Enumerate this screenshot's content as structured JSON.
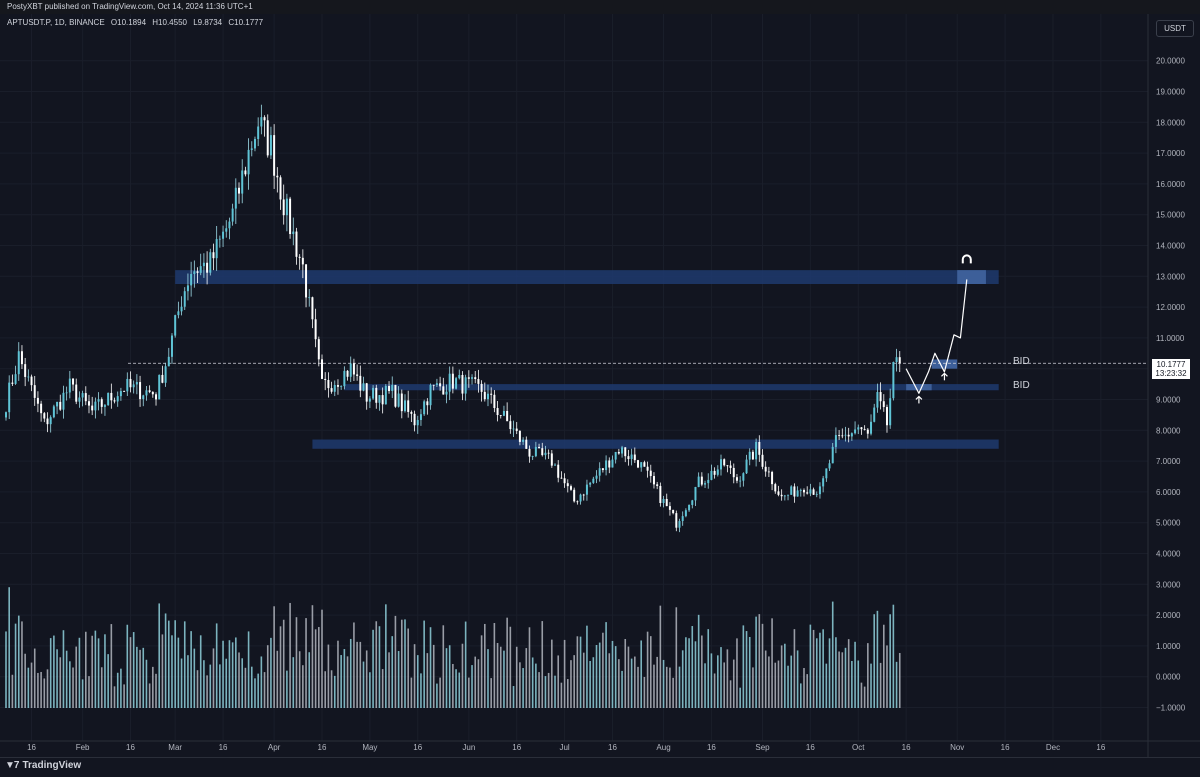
{
  "header": {
    "publisher": "PostyXBT published on TradingView.com, Oct 14, 2024 11:36 UTC+1"
  },
  "symbol": {
    "name": "APTUSDT.P, 1D, BINANCE",
    "open": "O10.1894",
    "high": "H10.4550",
    "low": "L9.8734",
    "close": "C10.1777"
  },
  "currency": "USDT",
  "last_price": {
    "price": "10.1777",
    "countdown": "13:23:32"
  },
  "bid_labels": [
    "BID",
    "BID"
  ],
  "footer": {
    "brand": "TradingView"
  },
  "colors": {
    "background": "#121520",
    "candle": "#ffffff",
    "volume": "#b2b5be",
    "zone": "#1e3a6e",
    "zone_light": "#3d5f99"
  },
  "chart_data": {
    "type": "candlestick",
    "ylim": [
      -1.7,
      20.7
    ],
    "y_ticks": [
      "20.0000",
      "19.0000",
      "18.0000",
      "17.0000",
      "16.0000",
      "15.0000",
      "14.0000",
      "13.0000",
      "12.0000",
      "11.0000",
      "10.0000",
      "9.0000",
      "8.0000",
      "7.0000",
      "6.0000",
      "5.0000",
      "4.0000",
      "3.0000",
      "2.0000",
      "1.0000",
      "0.0000",
      "−1.0000"
    ],
    "x_ticks": [
      "16",
      "Feb",
      "16",
      "Mar",
      "16",
      "Apr",
      "16",
      "May",
      "16",
      "Jun",
      "16",
      "Jul",
      "16",
      "Aug",
      "16",
      "Sep",
      "16",
      "Oct",
      "16",
      "Nov",
      "16",
      "Dec",
      "16"
    ],
    "price_path": [
      {
        "date": "2024-01-08",
        "price": 8.9
      },
      {
        "date": "2024-01-12",
        "price": 10.4
      },
      {
        "date": "2024-01-20",
        "price": 8.2
      },
      {
        "date": "2024-01-28",
        "price": 9.4
      },
      {
        "date": "2024-02-04",
        "price": 8.6
      },
      {
        "date": "2024-02-14",
        "price": 9.4
      },
      {
        "date": "2024-02-24",
        "price": 9.2
      },
      {
        "date": "2024-02-28",
        "price": 10.5
      },
      {
        "date": "2024-03-03",
        "price": 12.3
      },
      {
        "date": "2024-03-06",
        "price": 13.2
      },
      {
        "date": "2024-03-12",
        "price": 13.4
      },
      {
        "date": "2024-03-19",
        "price": 15.0
      },
      {
        "date": "2024-03-24",
        "price": 17.0
      },
      {
        "date": "2024-03-27",
        "price": 18.0
      },
      {
        "date": "2024-03-31",
        "price": 17.2
      },
      {
        "date": "2024-04-05",
        "price": 15.0
      },
      {
        "date": "2024-04-10",
        "price": 13.3
      },
      {
        "date": "2024-04-13",
        "price": 11.3
      },
      {
        "date": "2024-04-16",
        "price": 9.4
      },
      {
        "date": "2024-04-21",
        "price": 9.7
      },
      {
        "date": "2024-04-25",
        "price": 10.0
      },
      {
        "date": "2024-04-30",
        "price": 9.1
      },
      {
        "date": "2024-05-08",
        "price": 9.2
      },
      {
        "date": "2024-05-15",
        "price": 8.3
      },
      {
        "date": "2024-05-20",
        "price": 9.3
      },
      {
        "date": "2024-05-27",
        "price": 9.6
      },
      {
        "date": "2024-06-05",
        "price": 9.3
      },
      {
        "date": "2024-06-12",
        "price": 8.4
      },
      {
        "date": "2024-06-20",
        "price": 7.3
      },
      {
        "date": "2024-06-27",
        "price": 7.0
      },
      {
        "date": "2024-07-04",
        "price": 5.7
      },
      {
        "date": "2024-07-10",
        "price": 6.4
      },
      {
        "date": "2024-07-18",
        "price": 7.4
      },
      {
        "date": "2024-07-24",
        "price": 7.0
      },
      {
        "date": "2024-07-30",
        "price": 6.0
      },
      {
        "date": "2024-08-05",
        "price": 5.0
      },
      {
        "date": "2024-08-12",
        "price": 6.3
      },
      {
        "date": "2024-08-20",
        "price": 6.9
      },
      {
        "date": "2024-08-24",
        "price": 6.4
      },
      {
        "date": "2024-08-30",
        "price": 7.4
      },
      {
        "date": "2024-09-07",
        "price": 5.8
      },
      {
        "date": "2024-09-14",
        "price": 6.2
      },
      {
        "date": "2024-09-19",
        "price": 6.0
      },
      {
        "date": "2024-09-24",
        "price": 7.6
      },
      {
        "date": "2024-10-01",
        "price": 8.1
      },
      {
        "date": "2024-10-04",
        "price": 7.8
      },
      {
        "date": "2024-10-07",
        "price": 9.0
      },
      {
        "date": "2024-10-10",
        "price": 8.2
      },
      {
        "date": "2024-10-12",
        "price": 9.9
      },
      {
        "date": "2024-10-14",
        "price": 10.18
      }
    ],
    "zones": [
      {
        "from": "2024-03-01",
        "to": "2024-11-14",
        "low": 12.75,
        "high": 13.2
      },
      {
        "from": "2024-04-23",
        "to": "2024-11-14",
        "low": 9.3,
        "high": 9.5
      },
      {
        "from": "2024-04-13",
        "to": "2024-11-14",
        "low": 7.4,
        "high": 7.7
      }
    ],
    "last_price_line": 10.1777,
    "projection": [
      {
        "date": "2024-10-16",
        "price": 10.0
      },
      {
        "date": "2024-10-20",
        "price": 9.2
      },
      {
        "date": "2024-10-23",
        "price": 9.9
      },
      {
        "date": "2024-10-25",
        "price": 10.5
      },
      {
        "date": "2024-10-28",
        "price": 9.9
      },
      {
        "date": "2024-10-31",
        "price": 11.1
      },
      {
        "date": "2024-11-02",
        "price": 11.0
      },
      {
        "date": "2024-11-04",
        "price": 12.9
      }
    ]
  }
}
